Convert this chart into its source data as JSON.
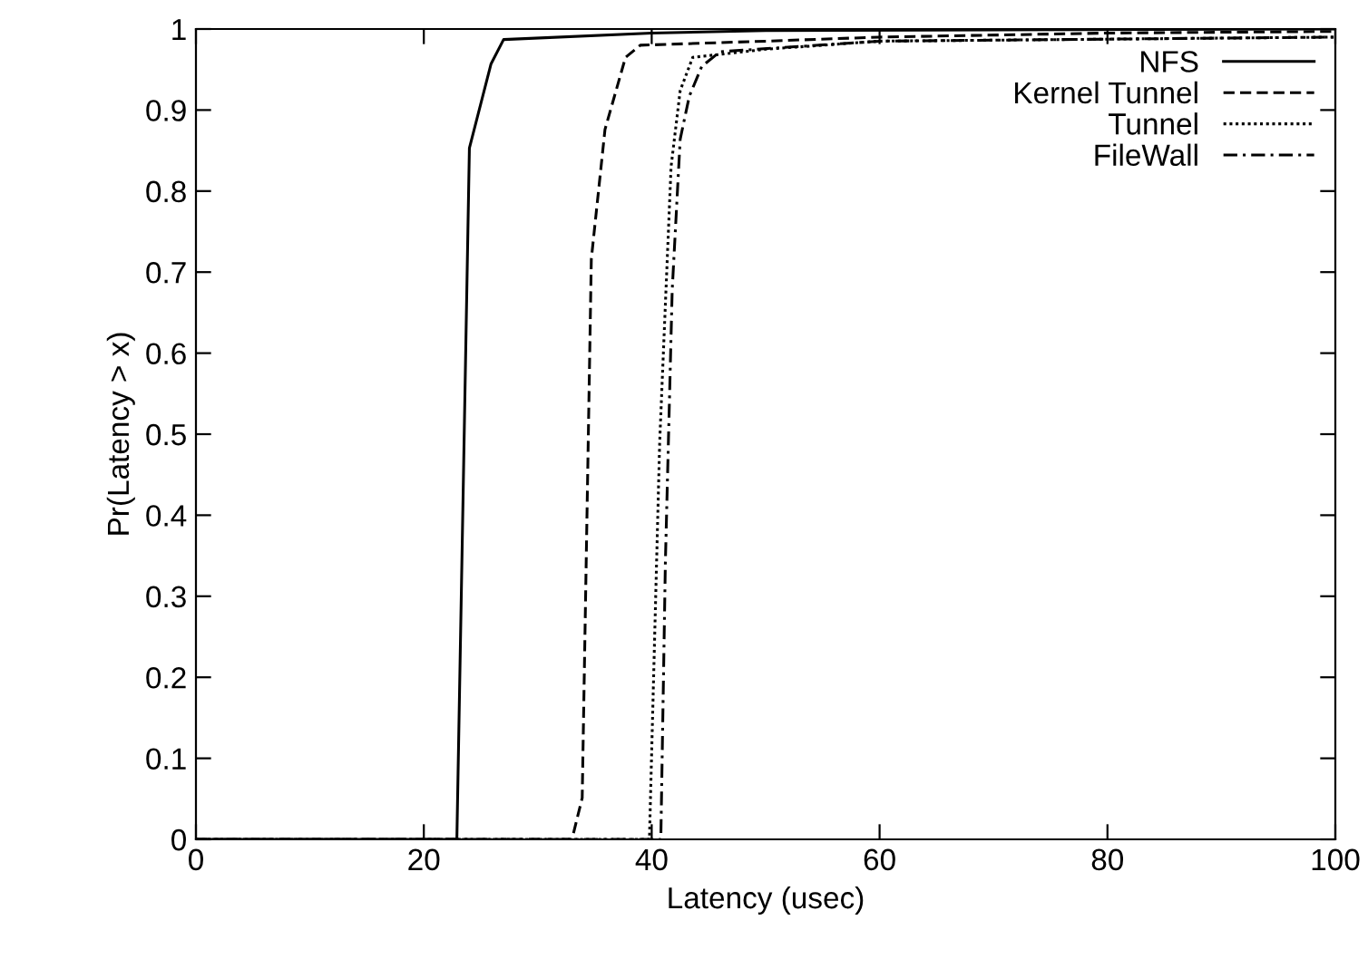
{
  "chart_data": {
    "type": "line",
    "xlabel": "Latency (usec)",
    "ylabel": "Pr(Latency > x)",
    "xlim": [
      0,
      100
    ],
    "ylim": [
      0,
      1
    ],
    "xticks": [
      0,
      20,
      40,
      60,
      80,
      100
    ],
    "yticks": [
      0,
      0.1,
      0.2,
      0.3,
      0.4,
      0.5,
      0.6,
      0.7,
      0.8,
      0.9,
      1
    ],
    "grid": false,
    "legend": "top right",
    "marker": "none",
    "series": [
      {
        "name": "NFS",
        "color": "#000000",
        "line_style": "solid",
        "x": [
          0,
          22.9,
          24.0,
          25.9,
          27.0,
          40,
          50,
          100
        ],
        "values": [
          0,
          0,
          0.853,
          0.957,
          0.987,
          0.995,
          0.998,
          1
        ]
      },
      {
        "name": "Kernel Tunnel",
        "color": "#000000",
        "line_style": "dashed",
        "x": [
          0,
          33.0,
          33.9,
          34.7,
          35.9,
          37.7,
          39.0,
          50,
          60,
          80,
          100
        ],
        "values": [
          0,
          0,
          0.051,
          0.716,
          0.876,
          0.965,
          0.98,
          0.985,
          0.99,
          0.995,
          0.997
        ]
      },
      {
        "name": "Tunnel",
        "color": "#000000",
        "line_style": "dotted",
        "x": [
          0,
          39.8,
          40.7,
          41.7,
          42.5,
          43.6,
          50,
          60,
          100
        ],
        "values": [
          0,
          0,
          0.49,
          0.83,
          0.924,
          0.965,
          0.975,
          0.985,
          0.99
        ]
      },
      {
        "name": "FileWall",
        "color": "#000000",
        "line_style": "dashdot",
        "x": [
          0,
          40.8,
          41.2,
          41.8,
          42.5,
          43.3,
          44.4,
          46.0,
          60,
          100
        ],
        "values": [
          0,
          0,
          0.342,
          0.678,
          0.864,
          0.917,
          0.954,
          0.972,
          0.985,
          0.99
        ]
      }
    ]
  }
}
